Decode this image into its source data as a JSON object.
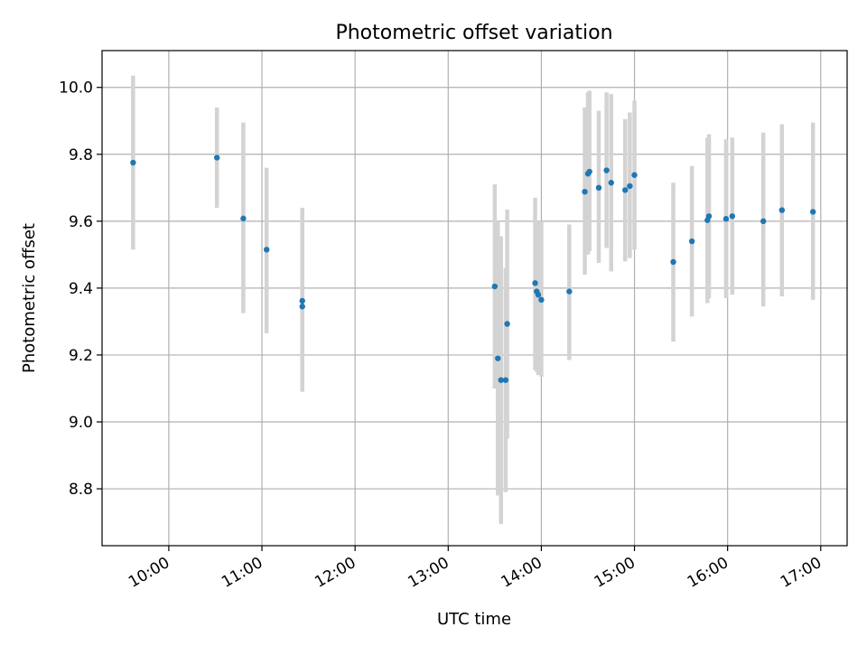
{
  "chart_data": {
    "type": "scatter",
    "title": "Photometric offset variation",
    "xlabel": "UTC time",
    "ylabel": "Photometric offset",
    "x_unit": "hours (UTC)",
    "xlim": [
      "09:17",
      "17:17"
    ],
    "ylim": [
      8.63,
      10.11
    ],
    "grid": true,
    "legend": "none",
    "x_ticks": [
      {
        "value": "10:00",
        "label": "10:00"
      },
      {
        "value": "11:00",
        "label": "11:00"
      },
      {
        "value": "12:00",
        "label": "12:00"
      },
      {
        "value": "13:00",
        "label": "13:00"
      },
      {
        "value": "14:00",
        "label": "14:00"
      },
      {
        "value": "15:00",
        "label": "15:00"
      },
      {
        "value": "16:00",
        "label": "16:00"
      },
      {
        "value": "17:00",
        "label": "17:00"
      }
    ],
    "y_ticks": [
      {
        "value": 8.8,
        "label": "8.8"
      },
      {
        "value": 9.0,
        "label": "9.0"
      },
      {
        "value": 9.2,
        "label": "9.2"
      },
      {
        "value": 9.4,
        "label": "9.4"
      },
      {
        "value": 9.6,
        "label": "9.6"
      },
      {
        "value": 9.8,
        "label": "9.8"
      },
      {
        "value": 10.0,
        "label": "10.0"
      }
    ],
    "colors": {
      "points": "#1f77b4",
      "error_bars": "#d3d3d3",
      "grid": "#b0b0b0"
    },
    "series": [
      {
        "points": [
          {
            "x": "09:37",
            "y": 9.775,
            "lo": 9.515,
            "hi": 10.035
          },
          {
            "x": "10:31",
            "y": 9.79,
            "lo": 9.64,
            "hi": 9.94
          },
          {
            "x": "10:48",
            "y": 9.608,
            "lo": 9.325,
            "hi": 9.895
          },
          {
            "x": "11:03",
            "y": 9.515,
            "lo": 9.265,
            "hi": 9.76
          },
          {
            "x": "11:26",
            "y": 9.362,
            "lo": 9.09,
            "hi": 9.64
          },
          {
            "x": "11:26",
            "y": 9.345,
            "lo": 9.09,
            "hi": 9.64
          },
          {
            "x": "13:30",
            "y": 9.405,
            "lo": 9.1,
            "hi": 9.71
          },
          {
            "x": "13:32",
            "y": 9.19,
            "lo": 8.78,
            "hi": 9.6
          },
          {
            "x": "13:34",
            "y": 9.125,
            "lo": 8.695,
            "hi": 9.555
          },
          {
            "x": "13:37",
            "y": 9.125,
            "lo": 8.79,
            "hi": 9.46
          },
          {
            "x": "13:38",
            "y": 9.293,
            "lo": 8.95,
            "hi": 9.635
          },
          {
            "x": "13:56",
            "y": 9.415,
            "lo": 9.155,
            "hi": 9.67
          },
          {
            "x": "13:57",
            "y": 9.39,
            "lo": 9.15,
            "hi": 9.6
          },
          {
            "x": "13:58",
            "y": 9.38,
            "lo": 9.14,
            "hi": 9.6
          },
          {
            "x": "14:00",
            "y": 9.365,
            "lo": 9.135,
            "hi": 9.6
          },
          {
            "x": "14:18",
            "y": 9.39,
            "lo": 9.185,
            "hi": 9.59
          },
          {
            "x": "14:28",
            "y": 9.688,
            "lo": 9.44,
            "hi": 9.94
          },
          {
            "x": "14:30",
            "y": 9.742,
            "lo": 9.5,
            "hi": 9.985
          },
          {
            "x": "14:31",
            "y": 9.748,
            "lo": 9.51,
            "hi": 9.99
          },
          {
            "x": "14:37",
            "y": 9.7,
            "lo": 9.475,
            "hi": 9.93
          },
          {
            "x": "14:42",
            "y": 9.752,
            "lo": 9.52,
            "hi": 9.985
          },
          {
            "x": "14:45",
            "y": 9.715,
            "lo": 9.45,
            "hi": 9.98
          },
          {
            "x": "14:54",
            "y": 9.693,
            "lo": 9.48,
            "hi": 9.905
          },
          {
            "x": "14:57",
            "y": 9.705,
            "lo": 9.49,
            "hi": 9.925
          },
          {
            "x": "15:00",
            "y": 9.738,
            "lo": 9.515,
            "hi": 9.96
          },
          {
            "x": "15:25",
            "y": 9.478,
            "lo": 9.24,
            "hi": 9.715
          },
          {
            "x": "15:37",
            "y": 9.54,
            "lo": 9.315,
            "hi": 9.765
          },
          {
            "x": "15:47",
            "y": 9.603,
            "lo": 9.355,
            "hi": 9.85
          },
          {
            "x": "15:48",
            "y": 9.615,
            "lo": 9.37,
            "hi": 9.86
          },
          {
            "x": "15:59",
            "y": 9.607,
            "lo": 9.37,
            "hi": 9.845
          },
          {
            "x": "16:03",
            "y": 9.615,
            "lo": 9.38,
            "hi": 9.85
          },
          {
            "x": "16:23",
            "y": 9.6,
            "lo": 9.345,
            "hi": 9.865
          },
          {
            "x": "16:35",
            "y": 9.633,
            "lo": 9.375,
            "hi": 9.89
          },
          {
            "x": "16:55",
            "y": 9.628,
            "lo": 9.365,
            "hi": 9.895
          }
        ]
      }
    ]
  }
}
